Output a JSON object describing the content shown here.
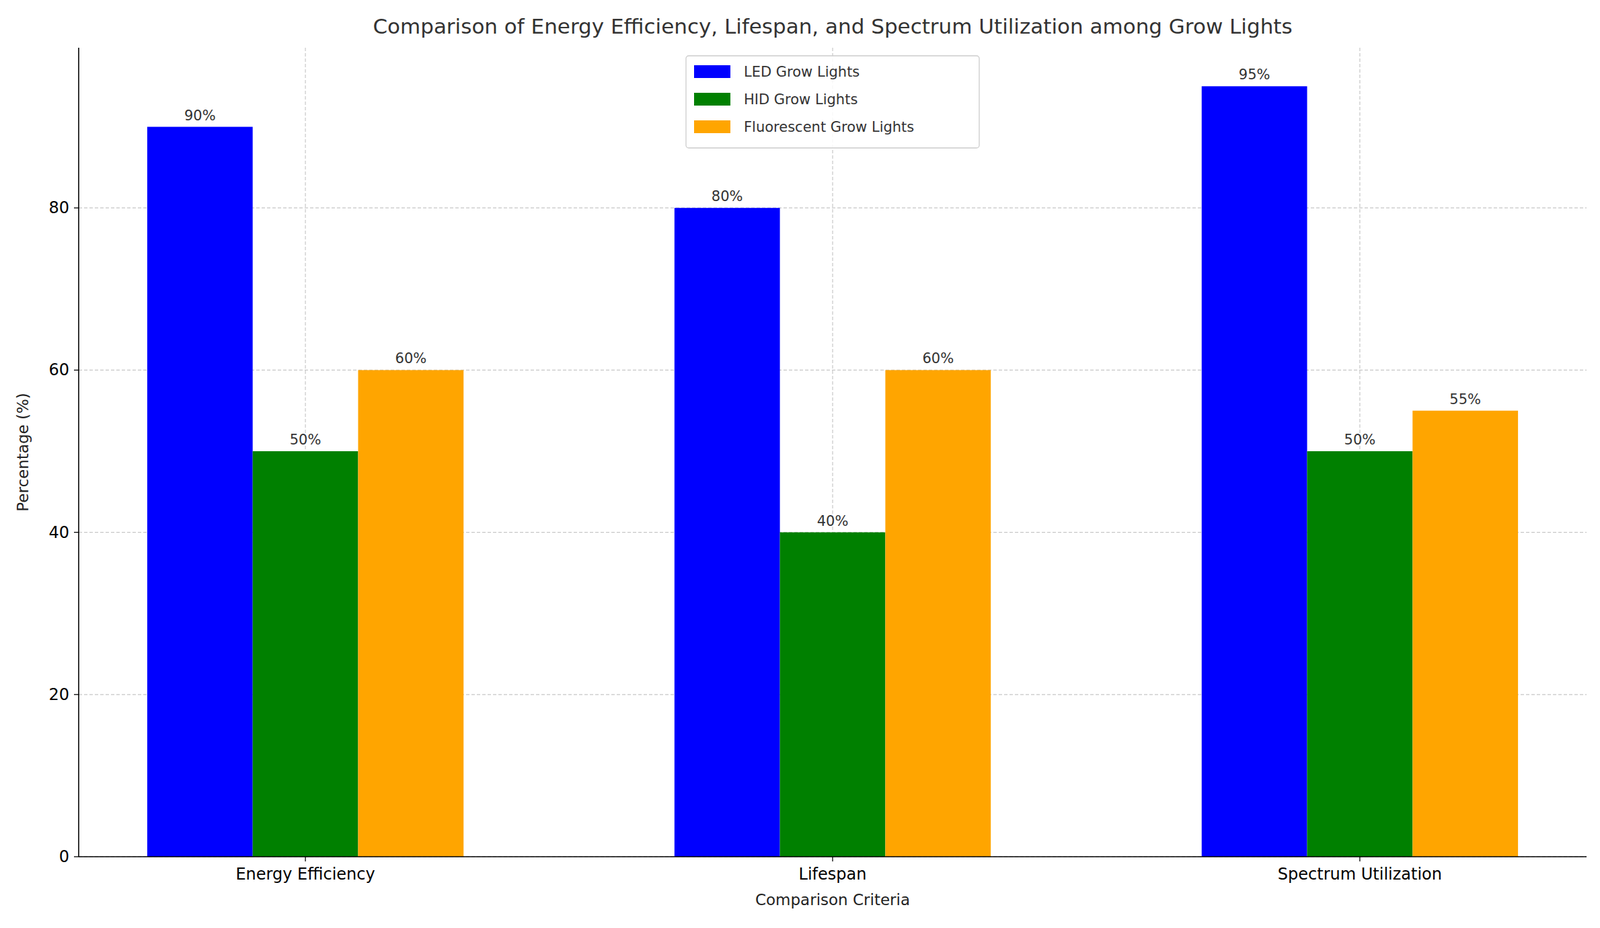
{
  "chart_data": {
    "type": "bar",
    "title": "Comparison of Energy Efficiency, Lifespan, and Spectrum Utilization among Grow Lights",
    "x_label": "Comparison Criteria",
    "y_label": "Percentage (%)",
    "categories": [
      "Energy Efficiency",
      "Lifespan",
      "Spectrum Utilization"
    ],
    "series": [
      {
        "name": "LED Grow Lights",
        "color": "#0000ff",
        "values": [
          90,
          80,
          95
        ],
        "value_labels": [
          "90%",
          "80%",
          "95%"
        ]
      },
      {
        "name": "HID Grow Lights",
        "color": "#008000",
        "values": [
          50,
          40,
          50
        ],
        "value_labels": [
          "50%",
          "40%",
          "50%"
        ]
      },
      {
        "name": "Fluorescent Grow Lights",
        "color": "#ffa500",
        "values": [
          60,
          60,
          55
        ],
        "value_labels": [
          "60%",
          "60%",
          "55%"
        ]
      }
    ],
    "ylim": [
      0,
      99.75
    ],
    "yticks": [
      0,
      20,
      40,
      60,
      80
    ],
    "grid": true,
    "legend": "upper center",
    "data_labels": true
  }
}
